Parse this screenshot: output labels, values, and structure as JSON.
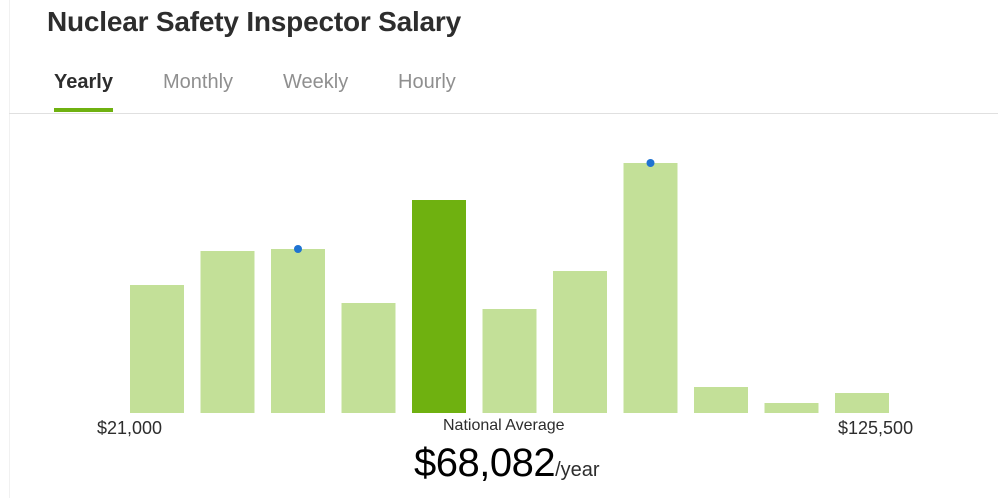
{
  "page": {
    "title": "Nuclear Safety Inspector Salary"
  },
  "tabs": [
    {
      "label": "Yearly",
      "active": true
    },
    {
      "label": "Monthly",
      "active": false
    },
    {
      "label": "Weekly",
      "active": false
    },
    {
      "label": "Hourly",
      "active": false
    }
  ],
  "colors": {
    "accent": "#6fb110",
    "bar": "#c3e098",
    "bar_highlight": "#6fb110",
    "marker": "#1f73d1"
  },
  "chart_data": {
    "type": "bar",
    "x_min_label": "$21,000",
    "x_max_label": "$125,500",
    "values": [
      128,
      162,
      164,
      110,
      213,
      104,
      142,
      250,
      26,
      10,
      20
    ],
    "highlight_index": 4,
    "marker_indices": [
      2,
      7
    ],
    "ylim": [
      0,
      250
    ]
  },
  "summary": {
    "label": "National Average",
    "value": "$68,082",
    "unit": "/year"
  }
}
